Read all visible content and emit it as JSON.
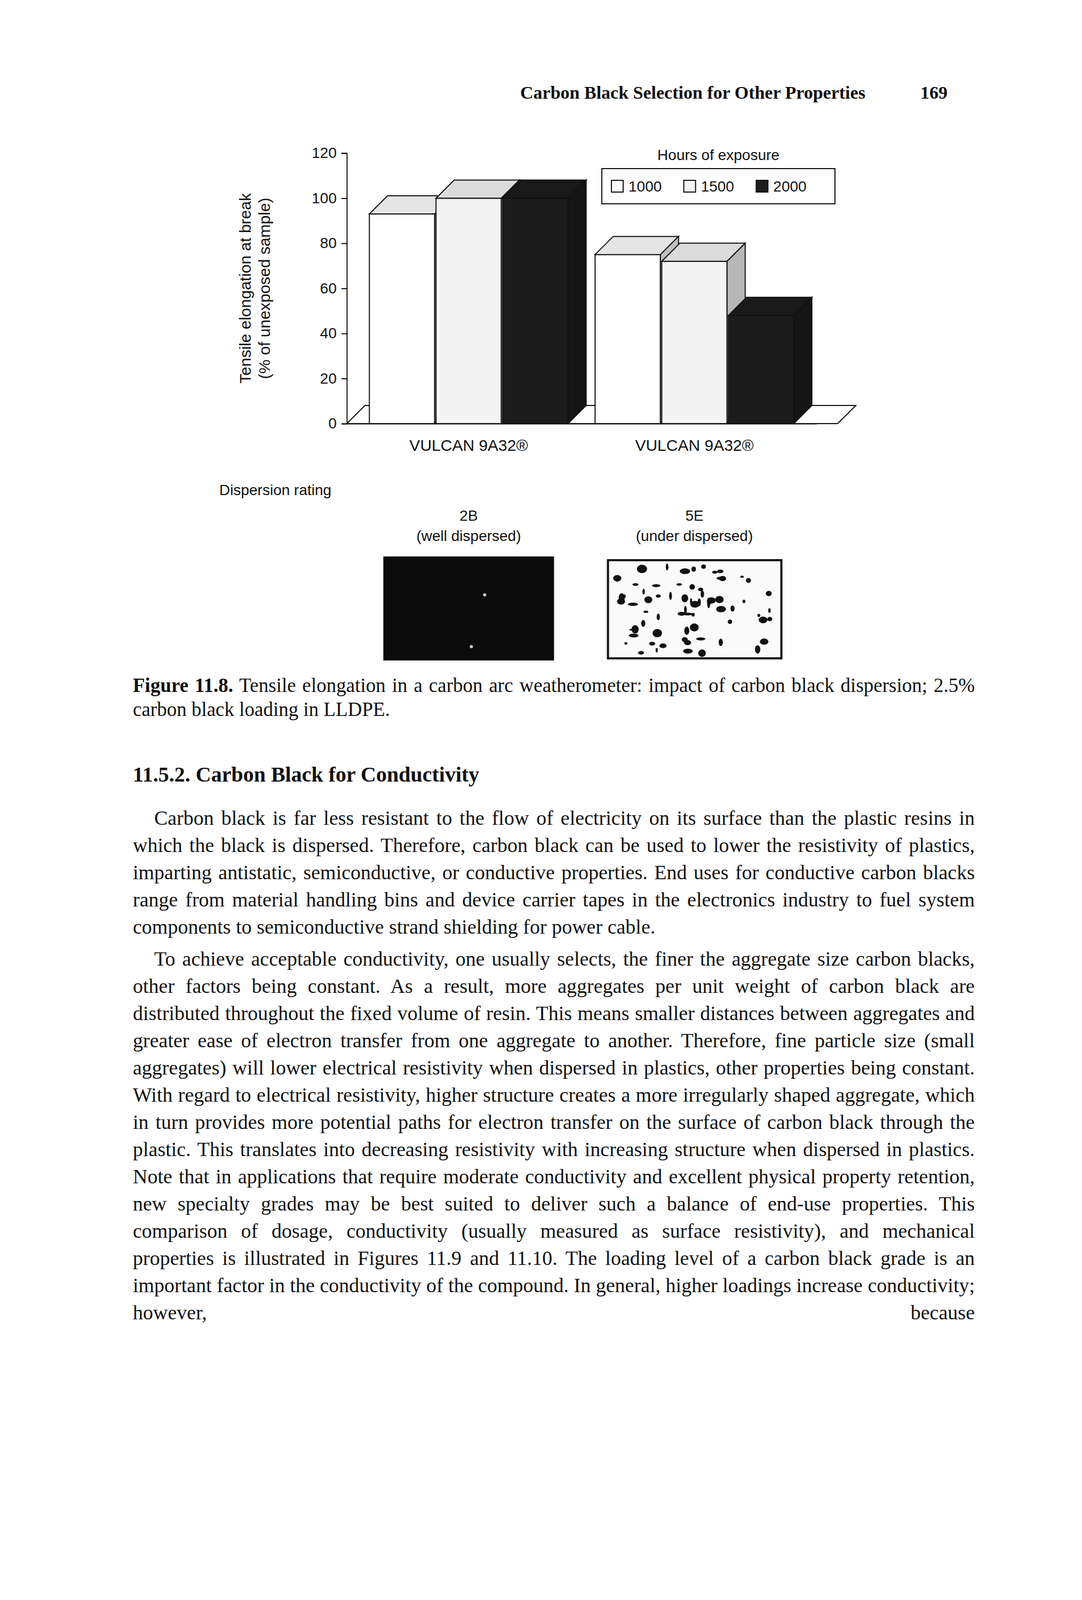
{
  "header": {
    "title": "Carbon Black Selection for Other Properties",
    "page": "169"
  },
  "chart_data": {
    "type": "bar",
    "ylabel": "Tensile elongation at break (% of unexposed sample)",
    "categories": [
      "VULCAN 9A32®",
      "VULCAN 9A32®"
    ],
    "legend_title": "Hours of exposure",
    "series": [
      {
        "name": "1000",
        "color": "#ffffff",
        "values": [
          93,
          75
        ]
      },
      {
        "name": "1500",
        "color": "#f4f4f4",
        "values": [
          100,
          72
        ]
      },
      {
        "name": "2000",
        "color": "#1c1c1c",
        "values": [
          100,
          48
        ]
      }
    ],
    "ylim": [
      0,
      120
    ],
    "yticks": [
      0,
      20,
      40,
      60,
      80,
      100,
      120
    ],
    "grid": false,
    "legend": "top-right"
  },
  "dispersion": {
    "label": "Dispersion rating",
    "samples": [
      {
        "rating": "2B",
        "description": "(well dispersed)"
      },
      {
        "rating": "5E",
        "description": "(under dispersed)"
      }
    ]
  },
  "figure": {
    "caption_label": "Figure 11.8.",
    "caption": "Tensile elongation in a carbon arc weatherometer: impact of carbon black dispersion; 2.5% carbon black loading in LLDPE."
  },
  "section": {
    "heading": "11.5.2. Carbon Black for Conductivity",
    "paragraphs": [
      "Carbon black is far less resistant to the flow of electricity on its surface than the plastic resins in which the black is dispersed. Therefore, carbon black can be used to lower the resistivity of plastics, imparting antistatic, semiconductive, or conductive properties. End uses for conductive carbon blacks range from material handling bins and device carrier tapes in the electronics industry to fuel system components to semiconductive strand shielding for power cable.",
      "To achieve acceptable conductivity, one usually selects, the finer the aggregate size carbon blacks, other factors being constant. As a result, more aggregates per unit weight of carbon black are distributed throughout the fixed volume of resin. This means smaller distances between aggregates and greater ease of electron transfer from one aggregate to another. Therefore, fine particle size (small aggregates) will lower electrical resistivity when dispersed in plastics, other properties being constant. With regard to electrical resistivity, higher structure creates a more irregularly shaped aggregate, which in turn provides more potential paths for electron transfer on the surface of carbon black through the plastic. This translates into decreasing resistivity with increasing structure when dispersed in plastics. Note that in applications that require moderate conductivity and excellent physical property retention, new specialty grades may be best suited to deliver such a balance of end-use properties. This comparison of dosage, conductivity (usually measured as surface resistivity), and mechanical properties is illustrated in Figures 11.9 and 11.10. The loading level of a carbon black grade is an important factor in the conductivity of the compound. In general, higher loadings increase conductivity; however, because"
    ]
  }
}
